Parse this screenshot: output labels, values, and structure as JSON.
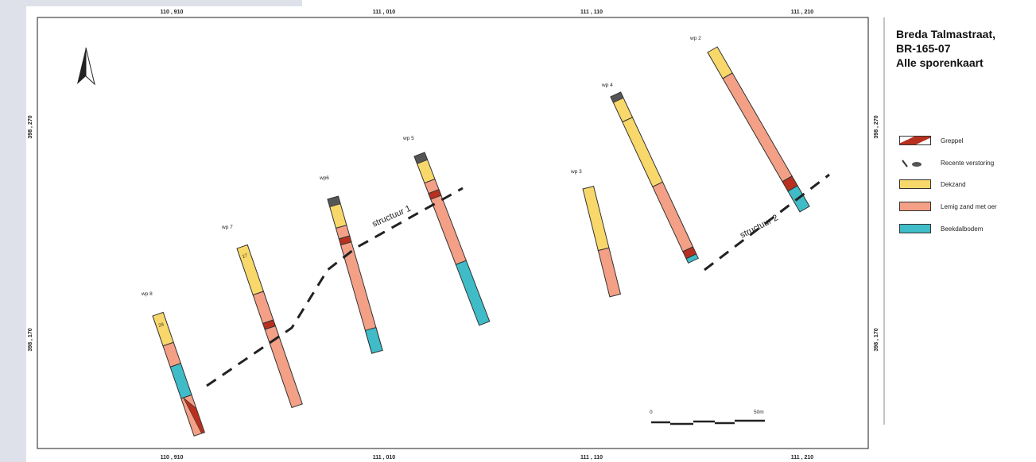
{
  "title": {
    "line1": "Breda Talmastraat,",
    "line2": "BR-165-07",
    "line3": "Alle sporenkaart"
  },
  "legend": [
    {
      "label": "Greppel",
      "color": "#b8301f",
      "icon": "greppel-swatch"
    },
    {
      "label": "Recente verstoring",
      "color": "#555555",
      "icon": "recente-verstoring-swatch"
    },
    {
      "label": "Dekzand",
      "color": "#f8d86a",
      "icon": "dekzand-swatch"
    },
    {
      "label": "Lemig zand met oer",
      "color": "#f3a086",
      "icon": "lemig-zand-swatch"
    },
    {
      "label": "Beekdalbodem",
      "color": "#3fbcc8",
      "icon": "beekdalbodem-swatch"
    }
  ],
  "coords": {
    "top": [
      "110 , 910",
      "111 , 010",
      "111 , 110",
      "111 , 210"
    ],
    "bottom": [
      "110 , 910",
      "111 , 010",
      "111 , 110",
      "111 , 210"
    ],
    "left": [
      "398 , 270",
      "398 , 170"
    ],
    "right": [
      "398 , 270",
      "398 , 170"
    ]
  },
  "profiles": [
    "wp 8",
    "wp 7",
    "wp6",
    "wp 5",
    "wp 3",
    "wp 4",
    "wp 2"
  ],
  "structures": [
    "structuur 1",
    "structuur 2"
  ],
  "scale": {
    "start": "0",
    "end": "50m"
  },
  "colors": {
    "dekzand": "#f8d86a",
    "lemig": "#f3a086",
    "beek": "#3fbcc8",
    "greppel": "#b8301f"
  }
}
